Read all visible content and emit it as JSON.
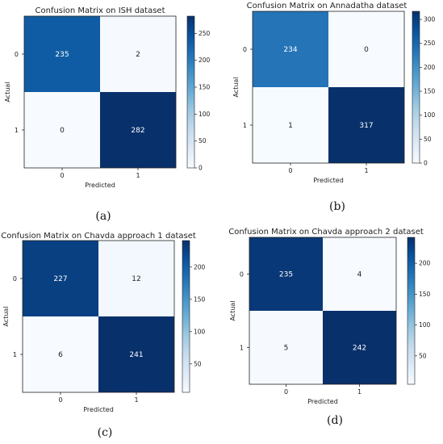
{
  "chart_data": [
    {
      "type": "heatmap",
      "letter": "(a)",
      "title": "Confusion Matrix on ISH dataset",
      "xlabel": "Predicted",
      "ylabel": "Actual",
      "x_categories": [
        "0",
        "1"
      ],
      "y_categories": [
        "0",
        "1"
      ],
      "values": [
        [
          235,
          2
        ],
        [
          0,
          282
        ]
      ],
      "colormap": "Blues",
      "colorbar_ticks": [
        0,
        50,
        100,
        150,
        200,
        250
      ]
    },
    {
      "type": "heatmap",
      "letter": "(b)",
      "title": "Confusion Matrix on Annadatha dataset",
      "xlabel": "Predicted",
      "ylabel": "Actual",
      "x_categories": [
        "0",
        "1"
      ],
      "y_categories": [
        "0",
        "1"
      ],
      "values": [
        [
          234,
          0
        ],
        [
          1,
          317
        ]
      ],
      "colormap": "Blues",
      "colorbar_ticks": [
        0,
        50,
        100,
        150,
        200,
        250,
        300
      ]
    },
    {
      "type": "heatmap",
      "letter": "(c)",
      "title": "Confusion Matrix on Chavda approach 1 dataset",
      "xlabel": "Predicted",
      "ylabel": "Actual",
      "x_categories": [
        "0",
        "1"
      ],
      "y_categories": [
        "0",
        "1"
      ],
      "values": [
        [
          227,
          12
        ],
        [
          6,
          241
        ]
      ],
      "colormap": "Blues",
      "colorbar_ticks": [
        50,
        100,
        150,
        200
      ]
    },
    {
      "type": "heatmap",
      "letter": "(d)",
      "title": "Confusion Matrix on Chavda approach 2 dataset",
      "xlabel": "Predicted",
      "ylabel": "Actual",
      "x_categories": [
        "0",
        "1"
      ],
      "y_categories": [
        "0",
        "1"
      ],
      "values": [
        [
          235,
          4
        ],
        [
          5,
          242
        ]
      ],
      "colormap": "Blues",
      "colorbar_ticks": [
        50,
        100,
        150,
        200
      ]
    }
  ]
}
